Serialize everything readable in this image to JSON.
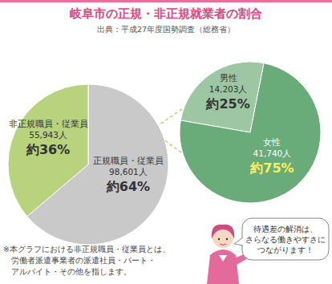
{
  "chart_data": [
    {
      "type": "pie",
      "title": "岐阜市の正規・非正規就業者の割合",
      "subtitle": "出典：平成27年度国勢調査（総務省）",
      "categories": [
        "正規職員・従業員",
        "非正規職員・従業員"
      ],
      "values": [
        98601,
        55943
      ],
      "value_labels": [
        "98,601人",
        "55,943人"
      ],
      "percents": [
        64,
        36
      ],
      "percent_labels": [
        "約64%",
        "約36%"
      ],
      "colors": [
        "#c9c9c9",
        "#b8d27e"
      ],
      "data_labels": true,
      "annotations": [
        "※本グラフにおける非正規職員・従業員とは、",
        "労働者派遣事業者の派遣社員・パート・",
        "アルバイト・その他を指します。"
      ]
    },
    {
      "type": "pie",
      "categories": [
        "男性",
        "女性"
      ],
      "values": [
        14203,
        41740
      ],
      "value_labels": [
        "14,203人",
        "41,740人"
      ],
      "percents": [
        25,
        75
      ],
      "percent_labels": [
        "約25%",
        "約75%"
      ],
      "colors": [
        "#9cc7a2",
        "#6aab7a"
      ],
      "data_labels": true,
      "annotations": [
        "待遇差の解消は、",
        "さらなる働きやすさに",
        "つながります！"
      ]
    }
  ]
}
